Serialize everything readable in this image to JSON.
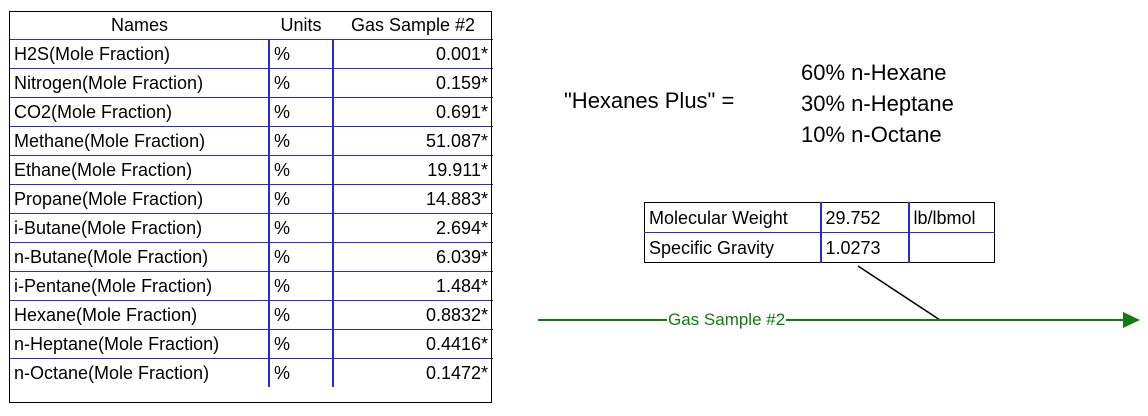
{
  "composition_table": {
    "headers": {
      "names": "Names",
      "units": "Units",
      "sample": "Gas Sample #2"
    },
    "rows": [
      {
        "name": "H2S(Mole Fraction)",
        "unit": "%",
        "value": "0.001*"
      },
      {
        "name": "Nitrogen(Mole Fraction)",
        "unit": "%",
        "value": "0.159*"
      },
      {
        "name": "CO2(Mole Fraction)",
        "unit": "%",
        "value": "0.691*"
      },
      {
        "name": "Methane(Mole Fraction)",
        "unit": "%",
        "value": "51.087*"
      },
      {
        "name": "Ethane(Mole Fraction)",
        "unit": "%",
        "value": "19.911*"
      },
      {
        "name": "Propane(Mole Fraction)",
        "unit": "%",
        "value": "14.883*"
      },
      {
        "name": "i-Butane(Mole Fraction)",
        "unit": "%",
        "value": "2.694*"
      },
      {
        "name": "n-Butane(Mole Fraction)",
        "unit": "%",
        "value": "6.039*"
      },
      {
        "name": "i-Pentane(Mole Fraction)",
        "unit": "%",
        "value": "1.484*"
      },
      {
        "name": "Hexane(Mole Fraction)",
        "unit": "%",
        "value": "0.8832*"
      },
      {
        "name": "n-Heptane(Mole Fraction)",
        "unit": "%",
        "value": "0.4416*"
      },
      {
        "name": "n-Octane(Mole Fraction)",
        "unit": "%",
        "value": "0.1472*"
      }
    ]
  },
  "hexanes_note": {
    "label": "\"Hexanes Plus\" =",
    "components": [
      "60% n-Hexane",
      "30% n-Heptane",
      "10% n-Octane"
    ]
  },
  "properties": {
    "rows": [
      {
        "name": "Molecular Weight",
        "value": "29.752",
        "unit": "lb/lbmol"
      },
      {
        "name": "Specific Gravity",
        "value": "1.0273",
        "unit": ""
      }
    ]
  },
  "stream": {
    "label": "Gas Sample #2",
    "line_color": "#117a11"
  },
  "colors": {
    "grid_blue": "#2a2ad8",
    "stream_green": "#117a11"
  }
}
